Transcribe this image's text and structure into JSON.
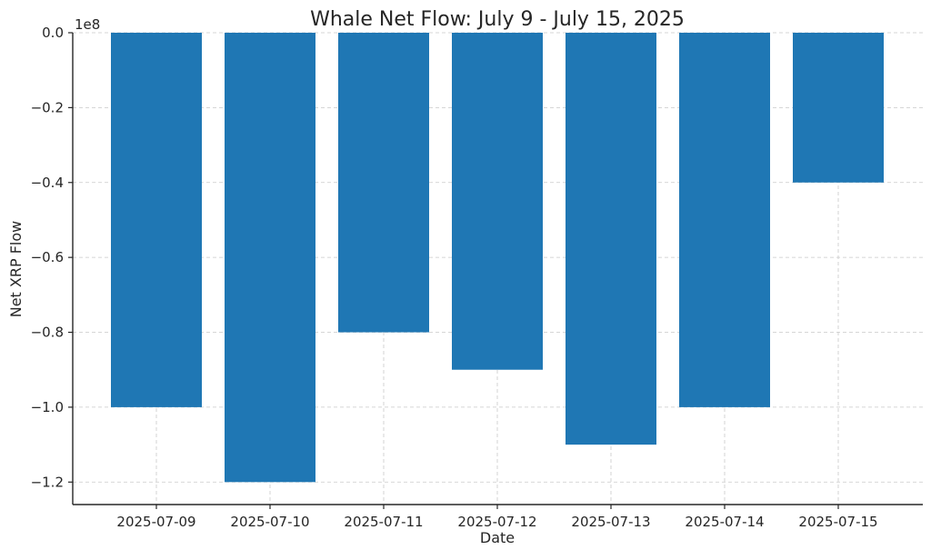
{
  "chart_data": {
    "type": "bar",
    "title": "Whale Net Flow: July 9 - July 15, 2025",
    "xlabel": "Date",
    "ylabel": "Net XRP Flow",
    "y_offset_label": "1e8",
    "categories": [
      "2025-07-09",
      "2025-07-10",
      "2025-07-11",
      "2025-07-12",
      "2025-07-13",
      "2025-07-14",
      "2025-07-15"
    ],
    "values": [
      -100000000,
      -120000000,
      -80000000,
      -90000000,
      -110000000,
      -100000000,
      -40000000
    ],
    "ylim": [
      -126000000,
      0
    ],
    "yticks": [
      0,
      -20000000,
      -40000000,
      -60000000,
      -80000000,
      -100000000,
      -120000000
    ],
    "ytick_labels": [
      "0.0",
      "−0.2",
      "−0.4",
      "−0.6",
      "−0.8",
      "−1.0",
      "−1.2"
    ],
    "grid": true,
    "bar_color": "#1f77b4"
  }
}
